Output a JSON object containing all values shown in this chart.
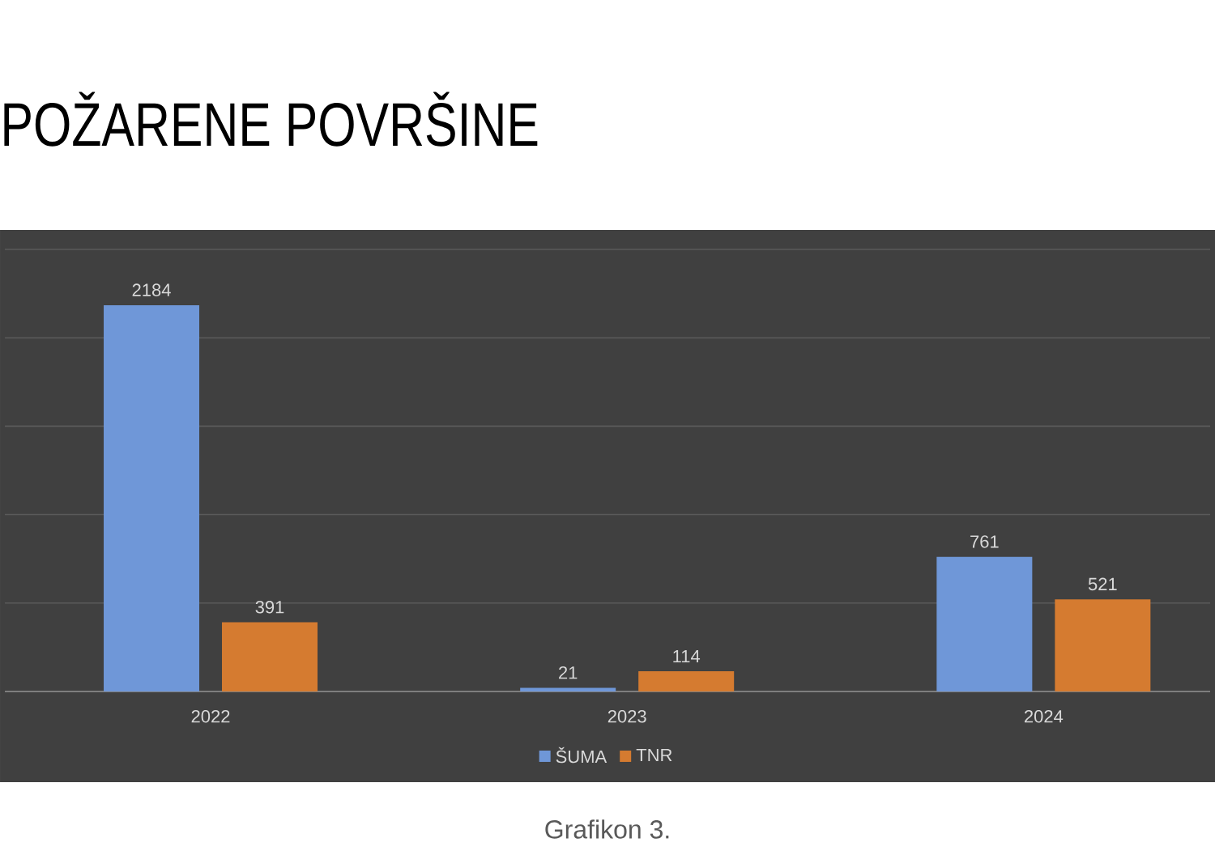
{
  "chart_data": {
    "type": "bar",
    "title": "POŽARENE POVRŠINE",
    "categories": [
      "2022",
      "2023",
      "2024"
    ],
    "series": [
      {
        "name": "ŠUMA",
        "color": "#6f97d8",
        "values": [
          2184,
          21,
          761
        ]
      },
      {
        "name": "TNR",
        "color": "#d57b30",
        "values": [
          391,
          114,
          521
        ]
      }
    ],
    "ylim": [
      0,
      2500
    ],
    "yticks": [
      {
        "value": 0,
        "label": null
      },
      {
        "value": 500,
        "label": null
      },
      {
        "value": 1000,
        "label": null
      },
      {
        "value": 1500,
        "label": null
      },
      {
        "value": 2000,
        "label": null
      },
      {
        "value": 2500,
        "label": null
      }
    ],
    "tick_labels": "x",
    "grid": "y",
    "legend": "bottom",
    "data_labels": true,
    "annotations": [
      "Grafikon 3."
    ]
  }
}
